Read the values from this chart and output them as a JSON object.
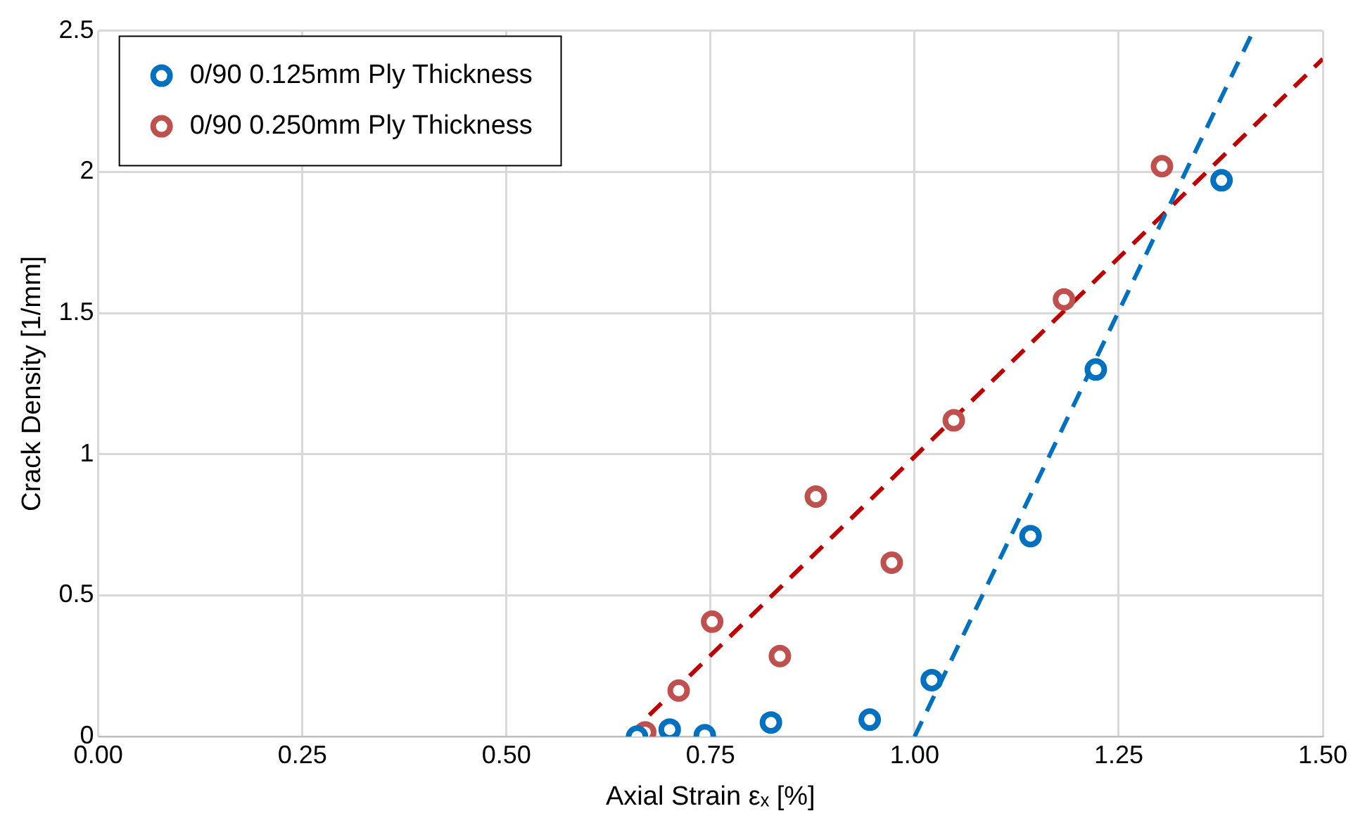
{
  "chart_data": {
    "type": "scatter",
    "xlabel": "Axial Strain εₓ [%]",
    "ylabel": "Crack Density [1/mm]",
    "xlim": [
      0,
      1.5
    ],
    "xticks": [
      {
        "value": 0,
        "label": "0.00"
      },
      {
        "value": 0.25,
        "label": "0.25"
      },
      {
        "value": 0.5,
        "label": "0.50"
      },
      {
        "value": 0.75,
        "label": "0.75"
      },
      {
        "value": 1,
        "label": "1.00"
      },
      {
        "value": 1.25,
        "label": "1.25"
      },
      {
        "value": 1.5,
        "label": "1.50"
      }
    ],
    "ylim": [
      0,
      2.5
    ],
    "yticks": [
      0,
      0.5,
      1,
      1.5,
      2,
      2.5
    ],
    "grid": true,
    "legend": "top left",
    "marker": "circle",
    "series": [
      {
        "name": "0/90 0.125mm Ply Thickness",
        "color": "#0070c0",
        "x": [
          0.66,
          0.7,
          0.743,
          0.824,
          0.945,
          1.021,
          1.142,
          1.222,
          1.376
        ],
        "values": [
          0,
          0.025,
          0.005,
          0.05,
          0.06,
          0.2,
          0.71,
          1.3,
          1.97
        ]
      },
      {
        "name": "0/90 0.250mm Ply Thickness",
        "color": "#c0504d",
        "x": [
          0.67,
          0.711,
          0.752,
          0.835,
          0.879,
          0.972,
          1.048,
          1.183,
          1.303
        ],
        "values": [
          0.015,
          0.163,
          0.407,
          0.285,
          0.85,
          0.616,
          1.12,
          1.548,
          2.02
        ]
      },
      {
        "type": "line",
        "color": "#0070c0",
        "line_style": "dashed",
        "marker": "none",
        "x": [
          1.0,
          1.415
        ],
        "values": [
          0,
          2.5
        ]
      },
      {
        "type": "line",
        "color": "#c00000",
        "line_style": "dashed",
        "marker": "none",
        "x": [
          0.675,
          1.5
        ],
        "values": [
          0.076,
          2.4
        ]
      }
    ]
  }
}
